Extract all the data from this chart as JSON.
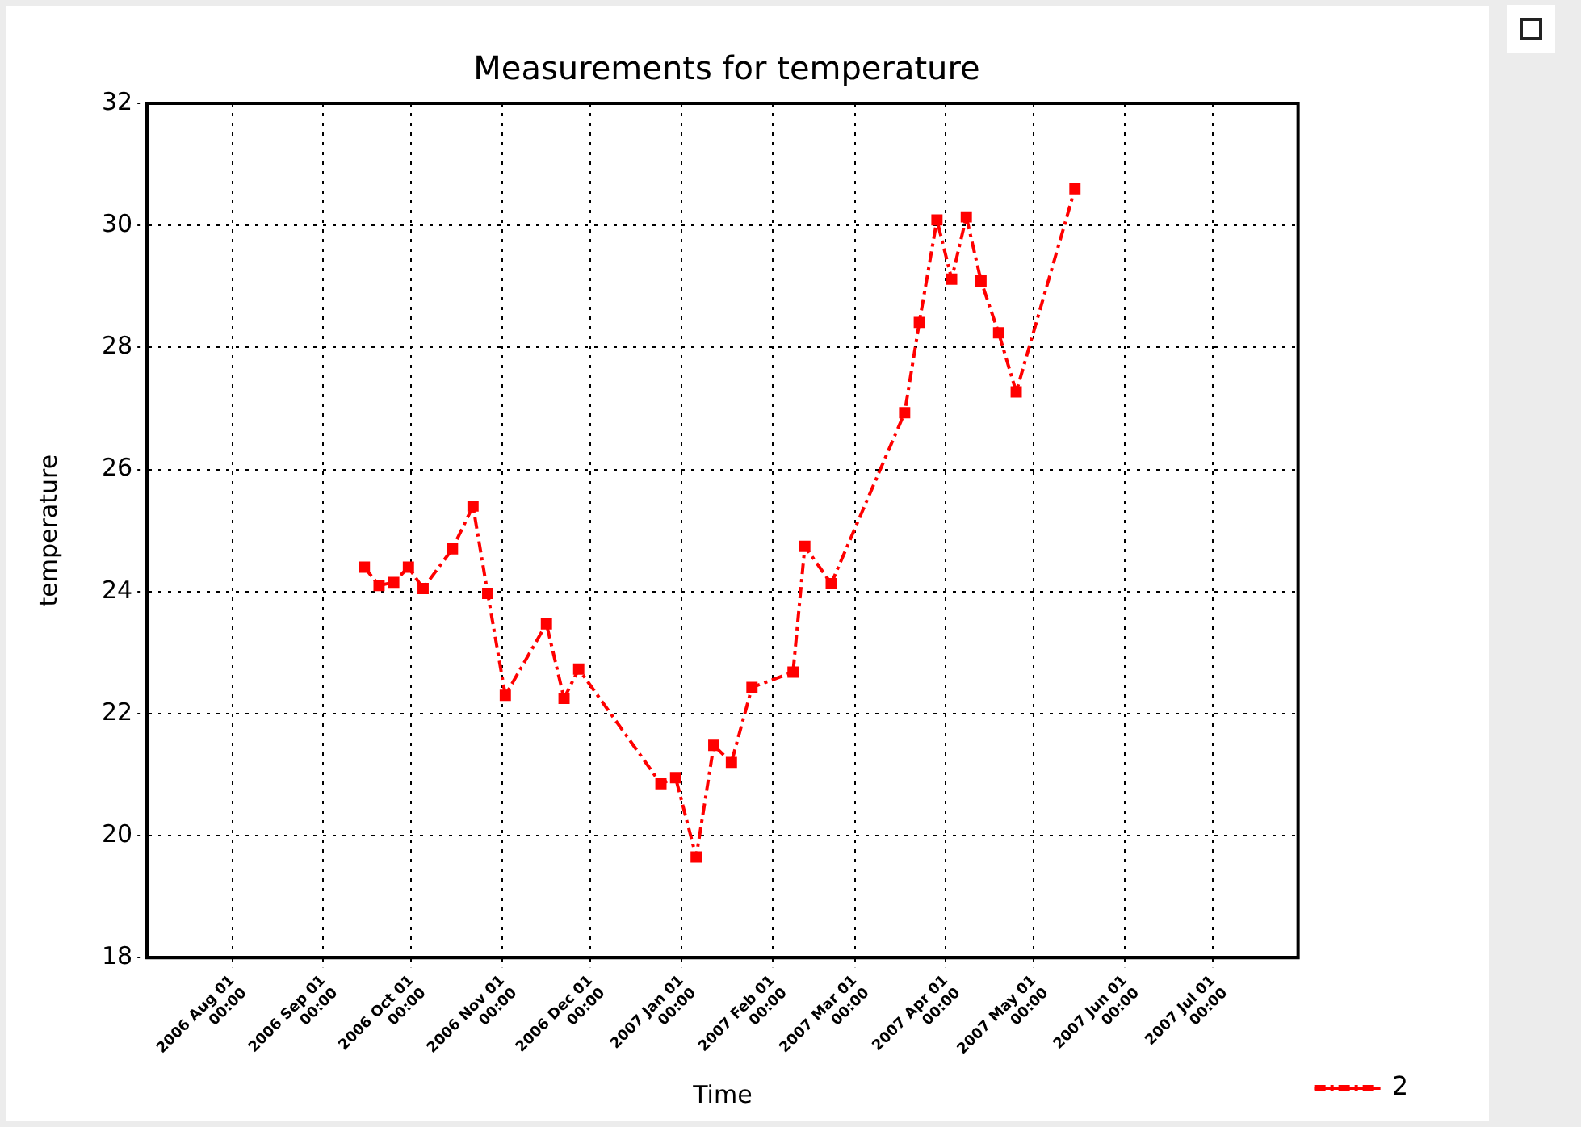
{
  "chart_data": {
    "type": "line",
    "title": "Measurements for temperature",
    "xlabel": "Time",
    "ylabel": "temperature",
    "x": [
      "2006-09-15",
      "2006-09-20",
      "2006-09-25",
      "2006-09-30",
      "2006-10-05",
      "2006-10-15",
      "2006-10-22",
      "2006-10-27",
      "2006-11-02",
      "2006-11-16",
      "2006-11-22",
      "2006-11-27",
      "2006-12-25",
      "2006-12-30",
      "2007-01-06",
      "2007-01-12",
      "2007-01-18",
      "2007-01-25",
      "2007-02-08",
      "2007-02-12",
      "2007-02-21",
      "2007-03-18",
      "2007-03-23",
      "2007-03-29",
      "2007-04-03",
      "2007-04-08",
      "2007-04-13",
      "2007-04-19",
      "2007-04-25",
      "2007-05-15"
    ],
    "series": [
      {
        "name": "2",
        "color": "#ff0000",
        "values": [
          24.4,
          24.1,
          24.15,
          24.4,
          24.05,
          24.7,
          25.4,
          23.97,
          22.3,
          23.47,
          22.25,
          22.73,
          20.85,
          20.95,
          19.65,
          21.48,
          21.2,
          22.43,
          22.68,
          24.74,
          24.13,
          26.93,
          28.41,
          30.09,
          29.12,
          30.14,
          29.09,
          28.24,
          27.27,
          30.6
        ]
      }
    ],
    "xlim": [
      "2006-07-03",
      "2007-07-30"
    ],
    "xticks": [
      {
        "value": "2006-08-01",
        "label": "2006 Aug 01 00:00"
      },
      {
        "value": "2006-09-01",
        "label": "2006 Sep 01 00:00"
      },
      {
        "value": "2006-10-01",
        "label": "2006 Oct 01 00:00"
      },
      {
        "value": "2006-11-01",
        "label": "2006 Nov 01 00:00"
      },
      {
        "value": "2006-12-01",
        "label": "2006 Dec 01 00:00"
      },
      {
        "value": "2007-01-01",
        "label": "2007 Jan 01 00:00"
      },
      {
        "value": "2007-02-01",
        "label": "2007 Feb 01 00:00"
      },
      {
        "value": "2007-03-01",
        "label": "2007 Mar 01 00:00"
      },
      {
        "value": "2007-04-01",
        "label": "2007 Apr 01 00:00"
      },
      {
        "value": "2007-05-01",
        "label": "2007 May 01 00:00"
      },
      {
        "value": "2007-06-01",
        "label": "2007 Jun 01 00:00"
      },
      {
        "value": "2007-07-01",
        "label": "2007 Jul 01 00:00"
      }
    ],
    "ylim": [
      18,
      32
    ],
    "yticks": [
      18,
      20,
      22,
      24,
      26,
      28,
      30,
      32
    ],
    "grid": true,
    "legend": "bottom right",
    "marker": "square",
    "line_style": "dashed"
  }
}
